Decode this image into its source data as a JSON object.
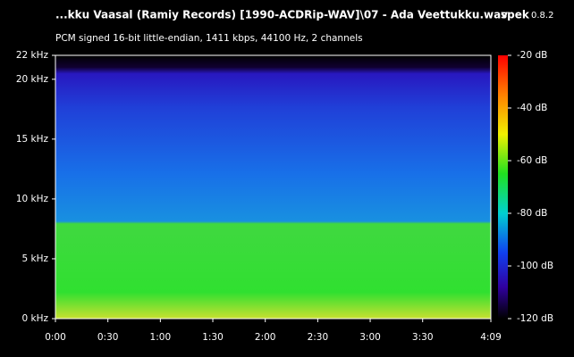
{
  "chart_data": {
    "type": "spectrogram",
    "title": "...kku Vaasal (Ramiy Records) [1990-ACDRip-WAV]\\07 - Ada Veettukku.wav",
    "app_name": "spek",
    "app_version": "0.8.2",
    "subtitle": "PCM signed 16-bit little-endian, 1411 kbps, 44100 Hz, 2 channels",
    "xlim": [
      0,
      249
    ],
    "xticks": [
      {
        "value": 0,
        "label": "0:00"
      },
      {
        "value": 30,
        "label": "0:30"
      },
      {
        "value": 60,
        "label": "1:00"
      },
      {
        "value": 90,
        "label": "1:30"
      },
      {
        "value": 120,
        "label": "2:00"
      },
      {
        "value": 150,
        "label": "2:30"
      },
      {
        "value": 180,
        "label": "3:00"
      },
      {
        "value": 210,
        "label": "3:30"
      },
      {
        "value": 249,
        "label": "4:09"
      }
    ],
    "ylim": [
      0,
      22
    ],
    "yticks": [
      {
        "value": 0,
        "label": "0 kHz"
      },
      {
        "value": 5,
        "label": "5 kHz"
      },
      {
        "value": 10,
        "label": "10 kHz"
      },
      {
        "value": 15,
        "label": "15 kHz"
      },
      {
        "value": 20,
        "label": "20 kHz"
      },
      {
        "value": 22,
        "label": "22 kHz"
      }
    ],
    "clim": [
      -120,
      -20
    ],
    "cticks": [
      {
        "value": -20,
        "label": "-20 dB"
      },
      {
        "value": -40,
        "label": "-40 dB"
      },
      {
        "value": -60,
        "label": "-60 dB"
      },
      {
        "value": -80,
        "label": "-80 dB"
      },
      {
        "value": -100,
        "label": "-100 dB"
      },
      {
        "value": -120,
        "label": "-120 dB"
      }
    ]
  }
}
